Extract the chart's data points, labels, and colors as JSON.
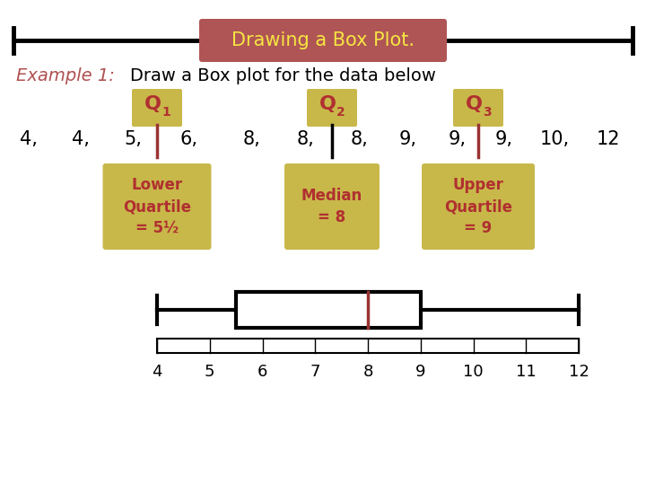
{
  "title": "Drawing a Box Plot.",
  "title_bg": "#b05555",
  "title_text_color": "#f5e642",
  "background_color": "#ffffff",
  "example_label": "Example 1:",
  "example_label_color": "#b05050",
  "example_text": "Draw a Box plot for the data below",
  "example_text_color": "#000000",
  "data_sequence": [
    "4,",
    "4,",
    "5,",
    "6,",
    "8,",
    "8,",
    "8,",
    "9,",
    "9,",
    "9,",
    "10,",
    "12"
  ],
  "quartile_text_color": "#b03030",
  "quartile_bg": "#c8b84a",
  "q1": 5.5,
  "median": 8,
  "q3": 9,
  "whisker_min": 4,
  "whisker_max": 12,
  "lower_quartile_label": "Lower\nQuartile\n= 5½",
  "median_label": "Median\n= 8",
  "upper_quartile_label": "Upper\nQuartile\n= 9",
  "axis_ticks": [
    4,
    5,
    6,
    7,
    8,
    9,
    10,
    11,
    12
  ],
  "font_family": "Comic Sans MS",
  "q1_line_color": "#993333",
  "q2_line_color": "#000000",
  "q3_line_color": "#993333",
  "median_line_color": "#993333"
}
